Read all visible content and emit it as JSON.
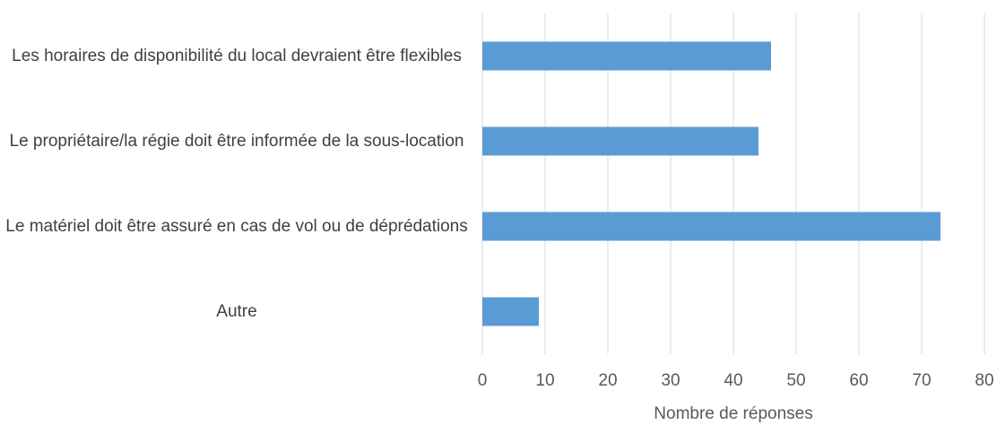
{
  "chart_data": {
    "type": "bar",
    "orientation": "horizontal",
    "categories": [
      "Les horaires de disponibilité du local devraient être flexibles",
      "Le propriétaire/la régie doit être informée de la sous-location",
      "Le matériel doit être assuré en cas de vol ou de déprédations",
      "Autre"
    ],
    "values": [
      46,
      44,
      73,
      9
    ],
    "color": "#5b9bd5",
    "xlabel": "Nombre de réponses",
    "xlim": [
      0,
      80
    ],
    "xticks": [
      0,
      10,
      20,
      30,
      40,
      50,
      60,
      70,
      80
    ],
    "grid": true
  }
}
